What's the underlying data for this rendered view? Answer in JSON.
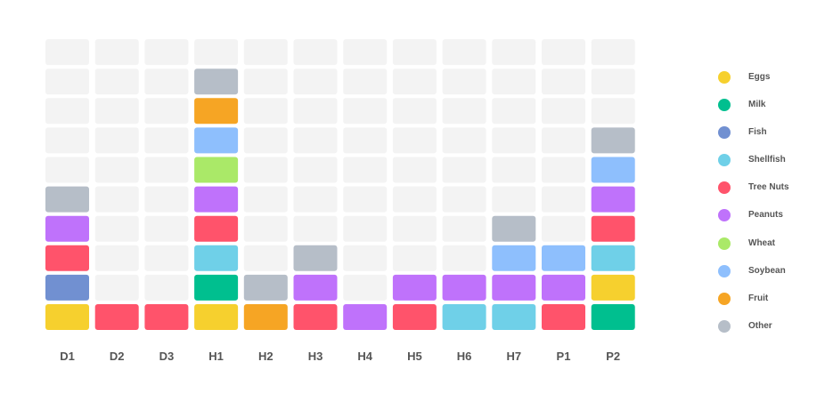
{
  "chart_data": {
    "type": "heatmap",
    "subtype": "stacked-block grid",
    "title": "",
    "xlabel": "",
    "ylabel": "",
    "categories": [
      "D1",
      "D2",
      "D3",
      "H1",
      "H2",
      "H3",
      "H4",
      "H5",
      "H6",
      "H7",
      "P1",
      "P2"
    ],
    "rows": 10,
    "legend_position": "right",
    "empty_cell_color": "#f3f3f3",
    "legend": [
      {
        "key": "eggs",
        "label": "Eggs",
        "color": "#f6d02e"
      },
      {
        "key": "milk",
        "label": "Milk",
        "color": "#00bf8f"
      },
      {
        "key": "fish",
        "label": "Fish",
        "color": "#7190d1"
      },
      {
        "key": "shellfish",
        "label": "Shellfish",
        "color": "#6fd0e8"
      },
      {
        "key": "treenuts",
        "label": "Tree Nuts",
        "color": "#ff536b"
      },
      {
        "key": "peanuts",
        "label": "Peanuts",
        "color": "#bf72fb"
      },
      {
        "key": "wheat",
        "label": "Wheat",
        "color": "#aae968"
      },
      {
        "key": "soybean",
        "label": "Soybean",
        "color": "#8ebffd"
      },
      {
        "key": "fruit",
        "label": "Fruit",
        "color": "#f6a524"
      },
      {
        "key": "other",
        "label": "Other",
        "color": "#b6bec8"
      }
    ],
    "stacks": {
      "D1": [
        "Eggs",
        "Fish",
        "Tree Nuts",
        "Peanuts",
        "Other"
      ],
      "D2": [
        "Tree Nuts"
      ],
      "D3": [
        "Tree Nuts"
      ],
      "H1": [
        "Eggs",
        "Milk",
        "Shellfish",
        "Tree Nuts",
        "Peanuts",
        "Wheat",
        "Soybean",
        "Fruit",
        "Other"
      ],
      "H2": [
        "Fruit",
        "Other"
      ],
      "H3": [
        "Tree Nuts",
        "Peanuts",
        "Other"
      ],
      "H4": [
        "Peanuts"
      ],
      "H5": [
        "Tree Nuts",
        "Peanuts"
      ],
      "H6": [
        "Shellfish",
        "Peanuts"
      ],
      "H7": [
        "Shellfish",
        "Peanuts",
        "Soybean",
        "Other"
      ],
      "P1": [
        "Tree Nuts",
        "Peanuts",
        "Soybean"
      ],
      "P2": [
        "Milk",
        "Eggs",
        "Shellfish",
        "Tree Nuts",
        "Peanuts",
        "Soybean",
        "Other"
      ]
    },
    "counts": [
      5,
      1,
      1,
      9,
      2,
      3,
      1,
      2,
      2,
      4,
      3,
      7
    ]
  }
}
